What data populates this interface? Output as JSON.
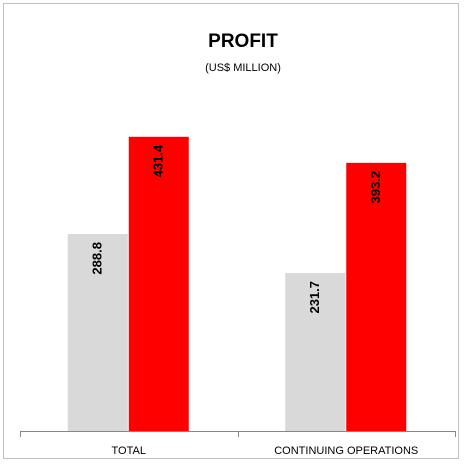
{
  "chart_data": {
    "type": "bar",
    "title": "PROFIT",
    "subtitle": "(US$ MILLION)",
    "categories": [
      "TOTAL",
      "CONTINUING OPERATIONS"
    ],
    "series": [
      {
        "color": "#d9d9d9",
        "values": [
          288.8,
          231.7
        ]
      },
      {
        "color": "#ff0000",
        "values": [
          431.4,
          393.2
        ]
      }
    ],
    "ylim": [
      0,
      500
    ]
  }
}
